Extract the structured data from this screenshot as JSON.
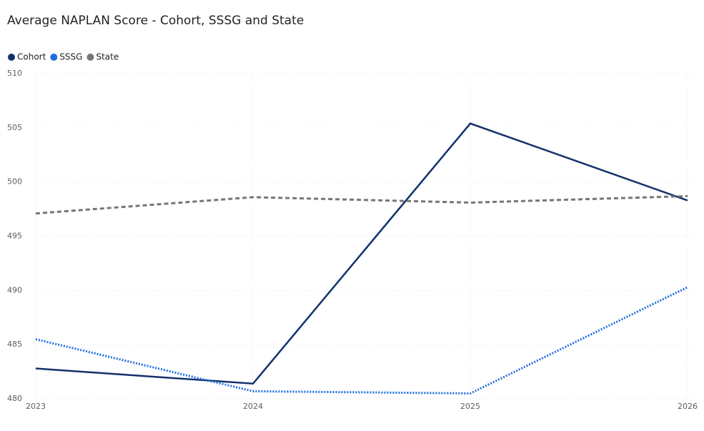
{
  "chart_data": {
    "type": "line",
    "title": "Average NAPLAN Score - Cohort, SSSG and State",
    "categories": [
      "2023",
      "2024",
      "2025",
      "2026"
    ],
    "series": [
      {
        "name": "Cohort",
        "color": "#12326b",
        "style": "solid",
        "values": [
          482.8,
          481.4,
          505.4,
          498.3
        ]
      },
      {
        "name": "SSSG",
        "color": "#1f6fdb",
        "style": "dotted",
        "values": [
          485.5,
          480.7,
          480.5,
          490.3
        ]
      },
      {
        "name": "State",
        "color": "#767676",
        "style": "dashed",
        "values": [
          497.1,
          498.6,
          498.1,
          498.7
        ]
      }
    ],
    "ylim": [
      480,
      510
    ],
    "yticks": [
      480,
      485,
      490,
      495,
      500,
      505,
      510
    ],
    "grid": true,
    "legend": "top-left"
  }
}
